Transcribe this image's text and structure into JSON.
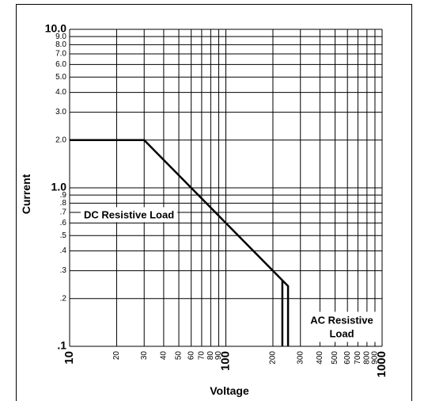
{
  "chart_data": {
    "type": "line",
    "x_scale": "log",
    "y_scale": "log",
    "xlim": [
      10,
      1000
    ],
    "ylim": [
      0.1,
      10
    ],
    "xlabel": "Voltage",
    "ylabel": "Current",
    "grid": true,
    "x_ticks": [
      {
        "value": 10,
        "label": "10",
        "major": true
      },
      {
        "value": 20,
        "label": "20",
        "major": false
      },
      {
        "value": 30,
        "label": "30",
        "major": false
      },
      {
        "value": 40,
        "label": "40",
        "major": false
      },
      {
        "value": 50,
        "label": "50",
        "major": false
      },
      {
        "value": 60,
        "label": "60",
        "major": false
      },
      {
        "value": 70,
        "label": "70",
        "major": false
      },
      {
        "value": 80,
        "label": "80",
        "major": false
      },
      {
        "value": 90,
        "label": "90",
        "major": false
      },
      {
        "value": 100,
        "label": "100",
        "major": true
      },
      {
        "value": 200,
        "label": "200",
        "major": false
      },
      {
        "value": 300,
        "label": "300",
        "major": false
      },
      {
        "value": 400,
        "label": "400",
        "major": false
      },
      {
        "value": 500,
        "label": "500",
        "major": false
      },
      {
        "value": 600,
        "label": "600",
        "major": false
      },
      {
        "value": 700,
        "label": "700",
        "major": false
      },
      {
        "value": 800,
        "label": "800",
        "major": false
      },
      {
        "value": 900,
        "label": "900",
        "major": false
      },
      {
        "value": 1000,
        "label": "1000",
        "major": true
      }
    ],
    "y_ticks": [
      {
        "value": 0.1,
        "label": ".1",
        "major": true
      },
      {
        "value": 0.2,
        "label": ".2",
        "major": false
      },
      {
        "value": 0.3,
        "label": ".3",
        "major": false
      },
      {
        "value": 0.4,
        "label": ".4",
        "major": false
      },
      {
        "value": 0.5,
        "label": ".5",
        "major": false
      },
      {
        "value": 0.6,
        "label": ".6",
        "major": false
      },
      {
        "value": 0.7,
        "label": ".7",
        "major": false
      },
      {
        "value": 0.8,
        "label": ".8",
        "major": false
      },
      {
        "value": 0.9,
        "label": ".9",
        "major": false
      },
      {
        "value": 1.0,
        "label": "1.0",
        "major": true
      },
      {
        "value": 2.0,
        "label": "2.0",
        "major": false
      },
      {
        "value": 3.0,
        "label": "3.0",
        "major": false
      },
      {
        "value": 4.0,
        "label": "4.0",
        "major": false
      },
      {
        "value": 5.0,
        "label": "5.0",
        "major": false
      },
      {
        "value": 6.0,
        "label": "6.0",
        "major": false
      },
      {
        "value": 7.0,
        "label": "7.0",
        "major": false
      },
      {
        "value": 8.0,
        "label": "8.0",
        "major": false
      },
      {
        "value": 9.0,
        "label": "9.0",
        "major": false
      },
      {
        "value": 10.0,
        "label": "10.0",
        "major": true
      }
    ],
    "series": [
      {
        "name": "DC Resistive Load",
        "points": [
          [
            10,
            2.0
          ],
          [
            30,
            2.0
          ],
          [
            250,
            0.24
          ],
          [
            250,
            0.1
          ]
        ]
      },
      {
        "name": "AC Resistive Load",
        "points": [
          [
            230,
            0.26
          ],
          [
            230,
            0.1
          ]
        ]
      }
    ],
    "annotations": [
      {
        "text": "DC Resistive Load",
        "anchor_series": "DC Resistive Load"
      },
      {
        "text": "AC Resistive\nLoad",
        "anchor_series": "AC Resistive Load"
      }
    ]
  }
}
